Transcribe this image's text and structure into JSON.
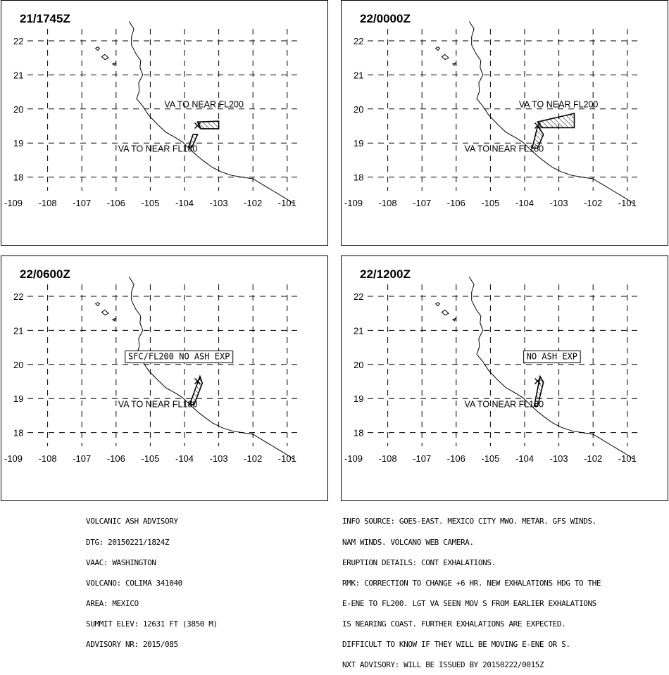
{
  "panels": [
    {
      "time": "21/1745Z",
      "labels": [
        {
          "text": "VA TO NEAR FL200",
          "boxed": false,
          "lon": -103.43,
          "lat": 20.05
        },
        {
          "text": "VA TO NEAR FL180",
          "boxed": false,
          "lon": -104.78,
          "lat": 18.75
        }
      ],
      "polygons": [
        [
          [
            -103.62,
            19.62
          ],
          [
            -103.0,
            19.64
          ],
          [
            -103.0,
            19.42
          ],
          [
            -103.52,
            19.42
          ]
        ],
        [
          [
            -103.75,
            19.25
          ],
          [
            -103.62,
            19.25
          ],
          [
            -103.78,
            18.88
          ],
          [
            -103.88,
            18.88
          ]
        ]
      ]
    },
    {
      "time": "22/0000Z",
      "labels": [
        {
          "text": "VA TO NEAR FL200",
          "boxed": false,
          "lon": -103.01,
          "lat": 20.05
        },
        {
          "text": "VA TO NEAR FL180",
          "boxed": false,
          "lon": -104.6,
          "lat": 18.75
        }
      ],
      "polygons": [
        [
          [
            -103.62,
            19.62
          ],
          [
            -102.55,
            19.87
          ],
          [
            -102.55,
            19.45
          ],
          [
            -103.5,
            19.45
          ]
        ],
        [
          [
            -103.62,
            19.5
          ],
          [
            -103.45,
            19.25
          ],
          [
            -103.62,
            18.85
          ],
          [
            -103.78,
            18.85
          ]
        ]
      ]
    },
    {
      "time": "22/0600Z",
      "labels": [
        {
          "text": "SFC/FL200 NO ASH EXP",
          "boxed": true,
          "lon": -104.16,
          "lat": 20.15
        },
        {
          "text": "VA TO NEAR FL180",
          "boxed": false,
          "lon": -104.78,
          "lat": 18.75
        }
      ],
      "polygons": [
        [
          [
            -103.55,
            19.65
          ],
          [
            -103.48,
            19.45
          ],
          [
            -103.72,
            18.82
          ],
          [
            -103.85,
            18.82
          ]
        ]
      ]
    },
    {
      "time": "22/1200Z",
      "labels": [
        {
          "text": "NO ASH EXP",
          "boxed": true,
          "lon": -103.2,
          "lat": 20.15
        },
        {
          "text": "VA TO NEAR FL180",
          "boxed": false,
          "lon": -104.6,
          "lat": 18.75
        }
      ],
      "polygons": [
        [
          [
            -103.55,
            19.65
          ],
          [
            -103.45,
            19.48
          ],
          [
            -103.62,
            18.78
          ],
          [
            -103.72,
            18.78
          ]
        ]
      ]
    }
  ],
  "map": {
    "lon_ticks": [
      -109,
      -108,
      -107,
      -106,
      -105,
      -104,
      -103,
      -102,
      -101
    ],
    "lat_ticks": [
      22,
      21,
      20,
      19,
      18
    ],
    "volcano": {
      "lon": -103.62,
      "lat": 19.51
    },
    "coastline": [
      [
        -105.62,
        22.57
      ],
      [
        -105.48,
        22.35
      ],
      [
        -105.55,
        22.12
      ],
      [
        -105.55,
        21.88
      ],
      [
        -105.42,
        21.62
      ],
      [
        -105.28,
        21.42
      ],
      [
        -105.3,
        21.22
      ],
      [
        -105.22,
        21.0
      ],
      [
        -105.34,
        20.76
      ],
      [
        -105.32,
        20.52
      ],
      [
        -105.4,
        20.3
      ],
      [
        -105.22,
        20.08
      ],
      [
        -105.05,
        19.82
      ],
      [
        -104.8,
        19.56
      ],
      [
        -104.55,
        19.32
      ],
      [
        -104.25,
        19.15
      ],
      [
        -104.05,
        19.02
      ],
      [
        -103.82,
        18.8
      ],
      [
        -103.6,
        18.6
      ],
      [
        -103.4,
        18.44
      ],
      [
        -103.18,
        18.28
      ],
      [
        -102.92,
        18.15
      ],
      [
        -102.62,
        18.05
      ],
      [
        -102.32,
        18.0
      ],
      [
        -102.0,
        17.95
      ],
      [
        -101.72,
        17.78
      ],
      [
        -101.42,
        17.6
      ],
      [
        -101.12,
        17.42
      ],
      [
        -100.8,
        17.22
      ]
    ],
    "islands": [
      [
        [
          -106.53,
          21.72
        ],
        [
          -106.48,
          21.78
        ],
        [
          -106.53,
          21.82
        ],
        [
          -106.6,
          21.78
        ]
      ],
      [
        [
          -106.42,
          21.53
        ],
        [
          -106.33,
          21.6
        ],
        [
          -106.22,
          21.5
        ],
        [
          -106.32,
          21.45
        ]
      ],
      [
        [
          -106.1,
          21.32
        ],
        [
          -106.02,
          21.35
        ],
        [
          -106.05,
          21.28
        ]
      ]
    ]
  },
  "advisory": {
    "lines": [
      "VOLCANIC ASH ADVISORY",
      "DTG: 20150221/1824Z",
      "VAAC: WASHINGTON",
      "VOLCANO: COLIMA 341040",
      "AREA: MEXICO",
      "SUMMIT ELEV: 12631 FT (3850 M)",
      "ADVISORY NR: 2015/085"
    ]
  },
  "remarks": {
    "lines": [
      "INFO SOURCE: GOES-EAST. MEXICO CITY MWO. METAR. GFS WINDS.",
      "NAM WINDS. VOLCANO WEB CAMERA.",
      "ERUPTION DETAILS: CONT EXHALATIONS.",
      "RMK: CORRECTION TO CHANGE +6 HR. NEW EXHALATIONS HDG TO THE",
      "E-ENE TO FL200. LGT VA SEEN MOV S FROM EARLIER EXHALATIONS",
      "IS NEARING COAST. FURTHER EXHALATIONS ARE EXPECTED.",
      "DIFFICULT TO KNOW IF THEY WILL BE MOVING E-ENE OR S.",
      "NXT ADVISORY: WILL BE ISSUED BY 20150222/0015Z"
    ]
  }
}
